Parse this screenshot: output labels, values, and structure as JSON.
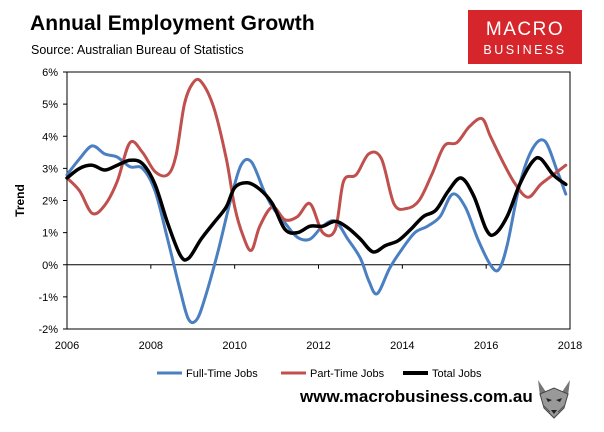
{
  "header": {
    "title": "Annual Employment Growth",
    "source": "Source: Australian Bureau of Statistics"
  },
  "logo": {
    "line1": "MACRO",
    "line2": "BUSINESS"
  },
  "footer": {
    "url": "www.macrobusiness.com.au"
  },
  "icons": {
    "fox": "fox-mascot-icon"
  },
  "chart_data": {
    "type": "line",
    "title": "Annual Employment Growth",
    "xlabel": "",
    "ylabel": "Trend",
    "xlim": [
      2006,
      2018
    ],
    "ylim": [
      -2,
      6
    ],
    "xticks": [
      2006,
      2008,
      2010,
      2012,
      2014,
      2016,
      2018
    ],
    "yticks": [
      -2,
      -1,
      0,
      1,
      2,
      3,
      4,
      5,
      6
    ],
    "tick_labels_x": [
      "2006",
      "2008",
      "2010",
      "2012",
      "2014",
      "2016",
      "2018"
    ],
    "tick_labels_y": [
      "-2%",
      "-1%",
      "0%",
      "1%",
      "2%",
      "3%",
      "4%",
      "5%",
      "6%"
    ],
    "grid": false,
    "legend": "bottom",
    "series": [
      {
        "name": "Full-Time Jobs",
        "color": "#4a7fc1",
        "x": [
          2006,
          2006.3,
          2006.6,
          2006.9,
          2007.2,
          2007.5,
          2007.8,
          2008.1,
          2008.4,
          2008.7,
          2008.9,
          2009.1,
          2009.3,
          2009.6,
          2009.9,
          2010.15,
          2010.4,
          2010.7,
          2010.9,
          2011.2,
          2011.5,
          2011.8,
          2012.1,
          2012.4,
          2012.7,
          2013.0,
          2013.2,
          2013.4,
          2013.7,
          2014.0,
          2014.3,
          2014.6,
          2014.9,
          2015.2,
          2015.5,
          2015.8,
          2016.1,
          2016.3,
          2016.5,
          2016.8,
          2017.1,
          2017.4,
          2017.7,
          2017.9
        ],
        "values": [
          2.8,
          3.3,
          3.7,
          3.45,
          3.35,
          3.05,
          3.0,
          2.3,
          0.8,
          -0.8,
          -1.7,
          -1.7,
          -1.0,
          0.4,
          2.0,
          3.1,
          3.2,
          2.3,
          1.8,
          1.3,
          0.85,
          0.8,
          1.2,
          1.35,
          0.8,
          0.2,
          -0.5,
          -0.9,
          -0.1,
          0.5,
          1.0,
          1.2,
          1.5,
          2.2,
          1.8,
          0.8,
          0.0,
          -0.15,
          0.6,
          2.5,
          3.6,
          3.85,
          2.9,
          2.2
        ]
      },
      {
        "name": "Part-Time Jobs",
        "color": "#c0504d",
        "x": [
          2006,
          2006.3,
          2006.6,
          2006.9,
          2007.2,
          2007.5,
          2007.8,
          2008.1,
          2008.4,
          2008.6,
          2008.8,
          2009.0,
          2009.2,
          2009.5,
          2009.8,
          2010.0,
          2010.2,
          2010.4,
          2010.6,
          2010.9,
          2011.2,
          2011.5,
          2011.8,
          2012.1,
          2012.4,
          2012.6,
          2012.9,
          2013.2,
          2013.5,
          2013.8,
          2014.1,
          2014.4,
          2014.7,
          2015.0,
          2015.3,
          2015.6,
          2015.9,
          2016.1,
          2016.4,
          2016.7,
          2017.0,
          2017.3,
          2017.6,
          2017.9
        ],
        "values": [
          2.7,
          2.3,
          1.6,
          1.85,
          2.6,
          3.8,
          3.5,
          2.9,
          2.8,
          3.4,
          5.0,
          5.65,
          5.7,
          4.9,
          3.3,
          1.8,
          0.9,
          0.45,
          1.2,
          1.8,
          1.4,
          1.5,
          1.9,
          1.0,
          1.1,
          2.6,
          2.8,
          3.45,
          3.3,
          1.9,
          1.75,
          2.0,
          2.8,
          3.7,
          3.8,
          4.3,
          4.55,
          4.0,
          3.2,
          2.5,
          2.1,
          2.5,
          2.8,
          3.1
        ]
      },
      {
        "name": "Total Jobs",
        "color": "#000000",
        "x": [
          2006,
          2006.3,
          2006.6,
          2006.9,
          2007.2,
          2007.5,
          2007.8,
          2008.1,
          2008.4,
          2008.7,
          2008.9,
          2009.2,
          2009.5,
          2009.8,
          2010.0,
          2010.3,
          2010.6,
          2010.9,
          2011.2,
          2011.5,
          2011.8,
          2012.1,
          2012.4,
          2012.7,
          2013.0,
          2013.3,
          2013.6,
          2013.9,
          2014.2,
          2014.5,
          2014.8,
          2015.1,
          2015.4,
          2015.7,
          2016.0,
          2016.2,
          2016.5,
          2016.8,
          2017.1,
          2017.3,
          2017.6,
          2017.9
        ],
        "values": [
          2.7,
          3.0,
          3.1,
          2.95,
          3.1,
          3.25,
          3.15,
          2.5,
          1.3,
          0.3,
          0.2,
          0.8,
          1.3,
          1.8,
          2.4,
          2.55,
          2.35,
          1.9,
          1.1,
          1.0,
          1.2,
          1.2,
          1.35,
          1.15,
          0.8,
          0.4,
          0.6,
          0.75,
          1.1,
          1.5,
          1.7,
          2.3,
          2.7,
          2.15,
          1.1,
          0.95,
          1.5,
          2.5,
          3.2,
          3.3,
          2.8,
          2.5
        ]
      }
    ]
  }
}
